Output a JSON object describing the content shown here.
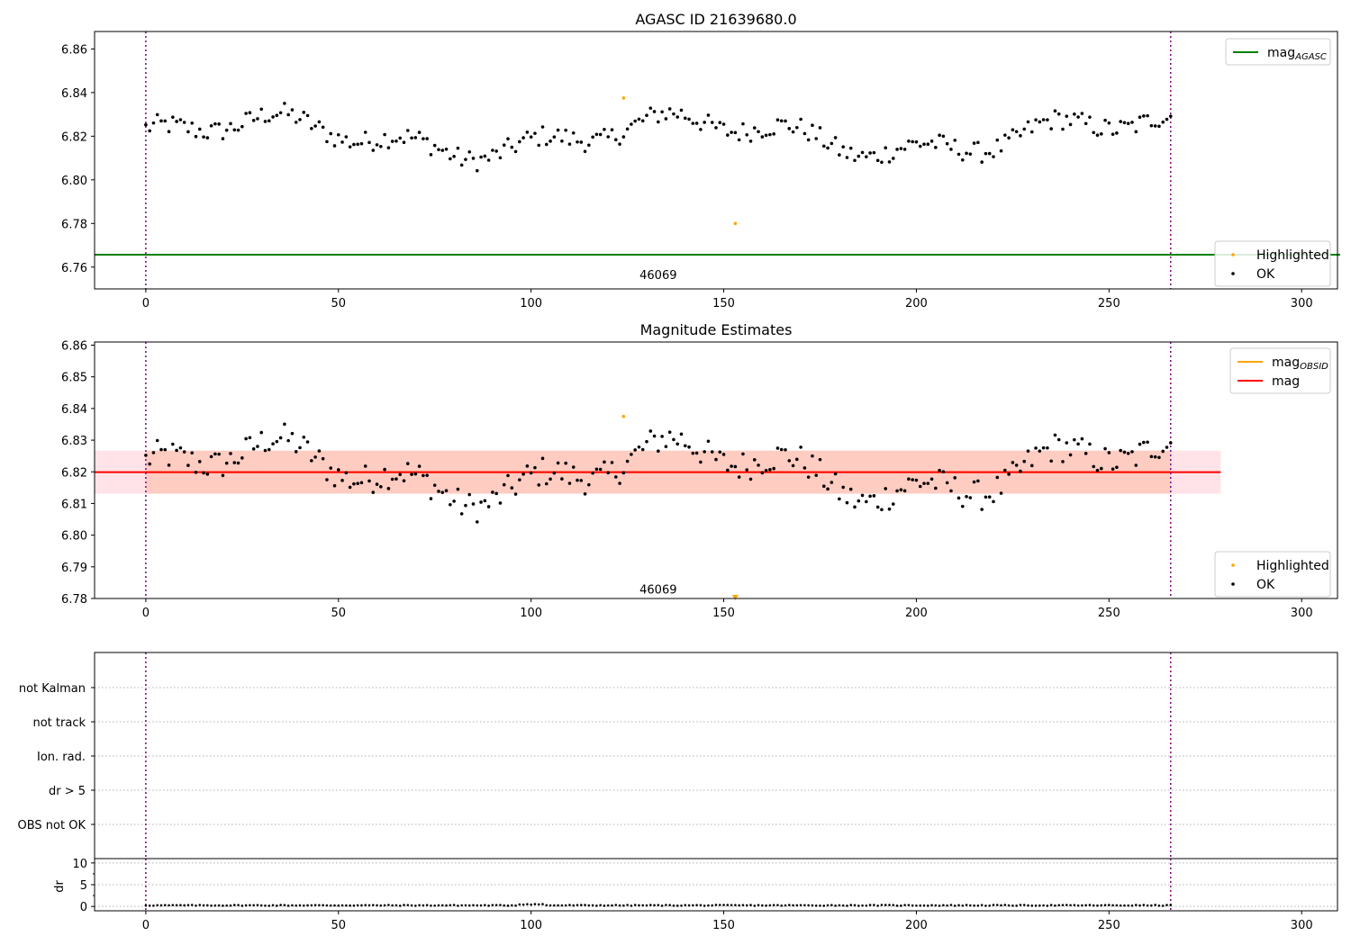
{
  "chart_data": [
    {
      "type": "scatter",
      "title": "AGASC ID 21639680.0",
      "xlim": [
        -13.3,
        309.3
      ],
      "ylim": [
        6.75,
        6.868
      ],
      "xticks": [
        "0",
        "50",
        "100",
        "150",
        "200",
        "250",
        "300"
      ],
      "yticks": [
        "6.76",
        "6.78",
        "6.80",
        "6.82",
        "6.84",
        "6.86"
      ],
      "vlines_x": [
        0,
        266
      ],
      "hline": {
        "name": "mag_AGASC",
        "y": 6.7657,
        "x_end": 310,
        "color": "#008000"
      },
      "annotation": {
        "text": "46069",
        "x": 133,
        "y": 6.7545
      },
      "series": [
        {
          "name": "OK",
          "color": "#000000",
          "n": 267,
          "x_start": 0,
          "x_step": 1,
          "y_base": 6.82,
          "y_amp": 0.008,
          "y_noise": 0.006,
          "y_min": 6.804,
          "y_max": 6.837
        },
        {
          "name": "Highlighted",
          "color": "#ffa500",
          "points": [
            [
              124,
              6.8375
            ],
            [
              153,
              6.78
            ]
          ]
        }
      ],
      "legend": [
        {
          "label": "mag",
          "subscript": "AGASC",
          "color": "#008000",
          "kind": "line"
        },
        {
          "label": "Highlighted",
          "color": "#ffa500",
          "kind": "dot"
        },
        {
          "label": "OK",
          "color": "#000000",
          "kind": "dot"
        }
      ]
    },
    {
      "type": "scatter",
      "title": "Magnitude Estimates",
      "xlim": [
        -13.3,
        309.3
      ],
      "ylim": [
        6.78,
        6.861
      ],
      "xticks": [
        "0",
        "50",
        "100",
        "150",
        "200",
        "250",
        "300"
      ],
      "yticks": [
        "6.78",
        "6.79",
        "6.80",
        "6.81",
        "6.82",
        "6.83",
        "6.84",
        "6.85",
        "6.86"
      ],
      "vlines_x": [
        0,
        266
      ],
      "mag_line": {
        "name": "mag",
        "y": 6.8199,
        "x_start": -13.3,
        "x_end": 279,
        "color": "#ff0000",
        "band_outer": [
          6.8131,
          6.8267
        ],
        "band_inner": [
          6.8131,
          6.8267
        ]
      },
      "mag_obsid": {
        "name": "mag_OBSID",
        "y": 6.8199,
        "x_start": 0,
        "x_end": 266,
        "color": "#ffa500"
      },
      "annotation": {
        "text": "46069",
        "x": 133,
        "y": 6.7816
      },
      "outlier_marker": {
        "x": 153,
        "y": 6.7803,
        "shape": "triangle-down",
        "color": "#ffa500"
      },
      "series": [
        {
          "name": "OK",
          "same_as_panel": 0
        },
        {
          "name": "Highlighted",
          "color": "#ffa500",
          "points": [
            [
              124,
              6.8375
            ]
          ]
        }
      ],
      "legend": [
        {
          "label": "mag",
          "subscript": "OBSID",
          "color": "#ffa500",
          "kind": "line"
        },
        {
          "label": "mag",
          "color": "#ff0000",
          "kind": "line"
        },
        {
          "label": "Highlighted",
          "color": "#ffa500",
          "kind": "dot"
        },
        {
          "label": "OK",
          "color": "#000000",
          "kind": "dot"
        }
      ]
    },
    {
      "type": "scatter",
      "title": "",
      "xlim": [
        -13.3,
        309.3
      ],
      "categories": [
        "not Kalman",
        "not track",
        "Ion. rad.",
        "dr > 5",
        "OBS not OK"
      ],
      "vlines_x": [
        0,
        266
      ],
      "grid": true
    },
    {
      "type": "scatter",
      "title": "",
      "ylabel": "dr",
      "xlim": [
        -13.3,
        309.3
      ],
      "ylim": [
        -1,
        11
      ],
      "xticks": [
        "0",
        "50",
        "100",
        "150",
        "200",
        "250",
        "300"
      ],
      "yticks": [
        "0",
        "5",
        "10"
      ],
      "vlines_x": [
        0,
        266
      ],
      "series": [
        {
          "name": "dr",
          "color": "#000000",
          "n": 267,
          "x_start": 0,
          "x_step": 1,
          "y_base": 0.15,
          "y_noise": 0.2
        }
      ]
    }
  ]
}
